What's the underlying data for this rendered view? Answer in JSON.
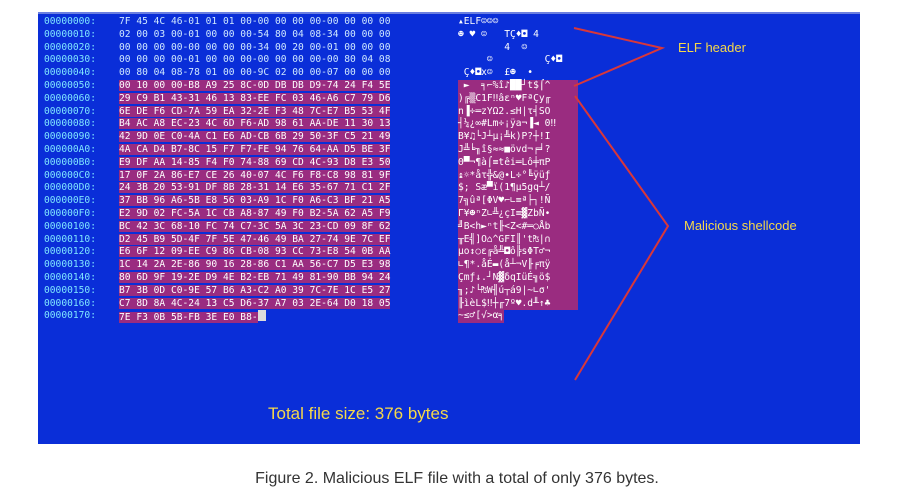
{
  "hex_dump": {
    "rows": [
      {
        "addr": "00000000:",
        "bytes": "7F 45 4C 46-01 01 01 00-00 00 00 00-00 00 00 00",
        "ascii": "▴ELF☺☺☺",
        "mal": false
      },
      {
        "addr": "00000010:",
        "bytes": "02 00 03 00-01 00 00 00-54 80 04 08-34 00 00 00",
        "ascii": "☻ ♥ ☺   TÇ♦◘ 4",
        "mal": false
      },
      {
        "addr": "00000020:",
        "bytes": "00 00 00 00-00 00 00 00-34 00 20 00-01 00 00 00",
        "ascii": "        4  ☺",
        "mal": false
      },
      {
        "addr": "00000030:",
        "bytes": "00 00 00 00-01 00 00 00-00 00 00 00-00 80 04 08",
        "ascii": "     ☺         Ç♦◘",
        "mal": false
      },
      {
        "addr": "00000040:",
        "bytes": "00 80 04 08-78 01 00 00-9C 02 00 00-07 00 00 00",
        "ascii": " Ç♦◘x☺  £☻  •",
        "mal": false
      },
      {
        "addr": "00000050:",
        "bytes": "00 10 00 00-B8 A9 25 8C-0D DB DB D9-74 24 F4 5E",
        "ascii": " ►  ╕⌐%î♪██┘t$⌠^",
        "mal": true
      },
      {
        "addr": "00000060:",
        "bytes": "29 C9 B1 43-31 46 13 83-EE FC 03 46-A6 C7 79 D6",
        "ascii": ")╔▒C1F‼âεⁿ♥FªÇy╓",
        "mal": true
      },
      {
        "addr": "00000070:",
        "bytes": "6E DE F6 CD-7A 59 EA 32-2E F3 48 7C-E7 B5 53 4F",
        "ascii": "n▐÷═zYΩ2.≤H|τ╡SO",
        "mal": true
      },
      {
        "addr": "00000080:",
        "bytes": "B4 AC A8 EC-23 4C 6D F6-AD 98 61 AA-DE 11 30 13",
        "ascii": "┤¼¿∞#Lm÷¡ÿa¬▐◄ 0‼",
        "mal": true
      },
      {
        "addr": "00000090:",
        "bytes": "42 9D 0E C0-4A C1 E6 AD-CB 6B 29 50-3F C5 21 49",
        "ascii": "B¥♫└J┴µ¡╩k)P?┼!I",
        "mal": true
      },
      {
        "addr": "000000A0:",
        "bytes": "4A CA D4 B7-8C 15 F7 F7-FE 94 76 64-AA D5 BE 3F",
        "ascii": "J╩╘╖î§≈≈■övd¬╒╛?",
        "mal": true
      },
      {
        "addr": "000000B0:",
        "bytes": "E9 DF AA 14-85 F4 F0 74-88 69 CD 4C-93 D8 E3 50",
        "ascii": "Θ▀¬¶à⌠≡têi═Lô╪πP",
        "mal": true
      },
      {
        "addr": "000000C0:",
        "bytes": "17 0F 2A 86-E7 CE 26 40-07 4C F6 F8-C8 98 81 9F",
        "ascii": "↨☼*åτ╬&@•L÷°╚ÿüƒ",
        "mal": true
      },
      {
        "addr": "000000D0:",
        "bytes": "24 3B 20 53-91 DF 8B 28-31 14 E6 35-67 71 C1 2F",
        "ascii": "$; Sæ▀ï(1¶µ5gq┴/",
        "mal": true
      },
      {
        "addr": "000000E0:",
        "bytes": "37 BB 96 A6-5B E8 56 03-A9 1C F0 A6-C3 BF 21 A5",
        "ascii": "7╗ûª[ΦV♥⌐∟≡ª├┐!Ñ",
        "mal": true
      },
      {
        "addr": "000000F0:",
        "bytes": "E2 9D 02 FC-5A 1C CB A8-87 49 F0 B2-5A 62 A5 F9",
        "ascii": "Γ¥☻ⁿZ∟╩¿çI≡▓ZbÑ∙",
        "mal": true
      },
      {
        "addr": "00000100:",
        "bytes": "BC 42 3C 68-10 FC 74 C7-3C 5A 3C 23-CD 09 8F 62",
        "ascii": "╝B<h►ⁿt╟<Z<#═○Åb",
        "mal": true
      },
      {
        "addr": "00000110:",
        "bytes": "D2 45 B9 5D-4F 7F 5E 47-46 49 BA 27-74 9E 7C EF",
        "ascii": "╥E╣]O⌂^GFI║'t₧|∩",
        "mal": true
      },
      {
        "addr": "00000120:",
        "bytes": "E6 6F 12 09-EE C9 86 CB-08 93 CC 73-E8 54 0B AA",
        "ascii": "µo↕○ε╔å╩◘ô╠sΦT♂¬",
        "mal": true
      },
      {
        "addr": "00000130:",
        "bytes": "1C 14 2A 2E-86 90 16 28-86 C1 AA 56-C7 D5 E3 98",
        "ascii": "∟¶*.åÉ▬(å┴¬V╟╒πÿ",
        "mal": true
      },
      {
        "addr": "00000140:",
        "bytes": "80 6D 9F 19-2E D9 4E B2-EB 71 49 81-90 BB 94 24",
        "ascii": "Çmƒ↓.┘N▓δqIüÉ╗ö$",
        "mal": true
      },
      {
        "addr": "00000150:",
        "bytes": "B7 3B 0D C0-9E 57 B6 A3-C2 A0 39 7C-7E 1C E5 27",
        "ascii": "╖;♪└₧W╢ú┬á9|~∟σ'",
        "mal": true
      },
      {
        "addr": "00000160:",
        "bytes": "C7 8D 8A 4C-24 13 C5 D6-37 A7 03 2E-64 D0 18 05",
        "ascii": "╟ìèL$‼┼╓7º♥.d╨↑♣",
        "mal": true
      },
      {
        "addr": "00000170:",
        "bytes": "7E F3 0B 5B-FB 3E E0 B8-",
        "ascii": "~≤♂[√>α╕",
        "mal": true,
        "last": true
      }
    ]
  },
  "labels": {
    "elf_header": "ELF header",
    "malicious_shellcode": "Malicious shellcode",
    "total_size": "Total file size: 376 bytes"
  },
  "caption": "Figure 2. Malicious ELF file with a total of only 376 bytes.",
  "colors": {
    "panel": "#0a2ed8",
    "highlight": "#9a2c80",
    "label": "#f5d84a",
    "arrow": "#d8373a"
  }
}
